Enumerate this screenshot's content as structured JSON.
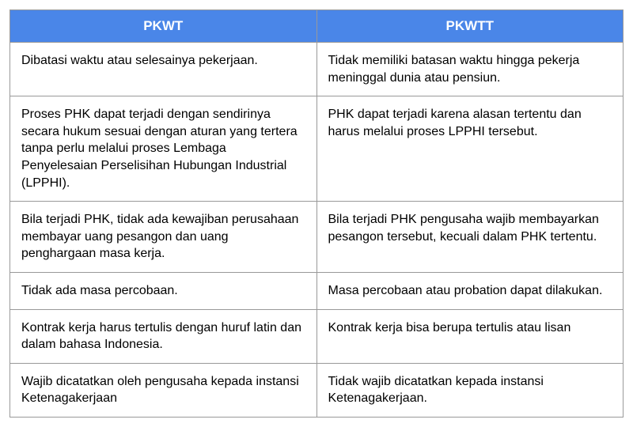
{
  "table": {
    "header_bg": "#4a86e8",
    "header_text_color": "#ffffff",
    "border_color": "#999999",
    "cell_text_color": "#000000",
    "columns": [
      "PKWT",
      "PKWTT"
    ],
    "rows": [
      [
        "Dibatasi waktu atau selesainya pekerjaan.",
        "Tidak memiliki batasan waktu hingga pekerja meninggal dunia atau pensiun."
      ],
      [
        "Proses PHK dapat terjadi dengan sendirinya secara hukum sesuai dengan aturan yang tertera tanpa perlu melalui proses Lembaga Penyelesaian Perselisihan Hubungan Industrial (LPPHI).",
        "PHK dapat terjadi karena alasan tertentu dan harus melalui proses LPPHI tersebut."
      ],
      [
        "Bila terjadi PHK, tidak ada kewajiban perusahaan membayar uang pesangon dan uang penghargaan masa kerja.",
        "Bila terjadi PHK pengusaha wajib membayarkan pesangon tersebut, kecuali dalam PHK tertentu."
      ],
      [
        "Tidak ada masa percobaan.",
        "Masa percobaan atau probation dapat dilakukan."
      ],
      [
        "Kontrak kerja harus tertulis dengan huruf latin dan dalam bahasa Indonesia.",
        "Kontrak kerja bisa berupa tertulis atau lisan"
      ],
      [
        "Wajib dicatatkan oleh pengusaha kepada instansi Ketenagakerjaan",
        "Tidak wajib dicatatkan kepada instansi Ketenagakerjaan."
      ]
    ]
  }
}
